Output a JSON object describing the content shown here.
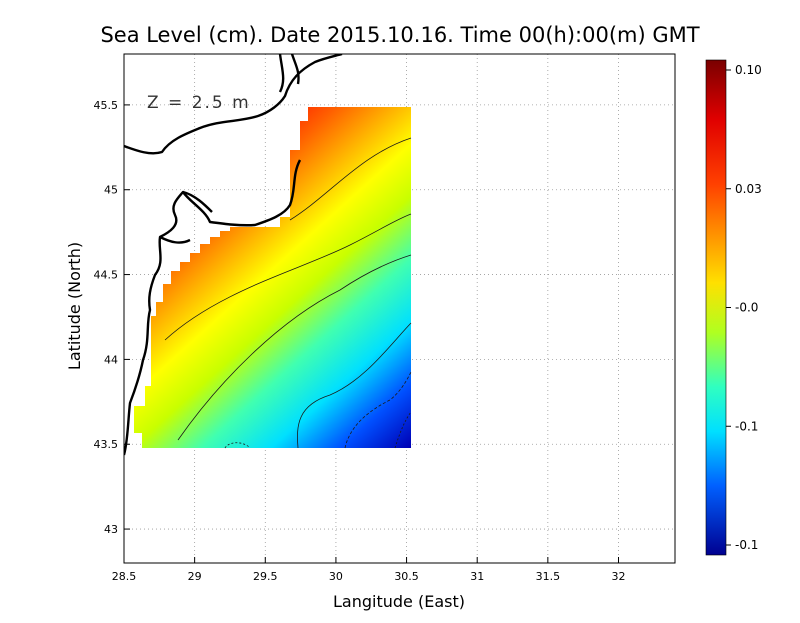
{
  "chart_data": {
    "type": "heatmap",
    "title": "Sea Level (cm). Date 2015.10.16. Time 00(h):00(m) GMT",
    "xlabel": "Langitude (East)",
    "ylabel": "Latitude (North)",
    "annotation": "Z = 2.5 m",
    "xlim": [
      28.5,
      32.4
    ],
    "ylim": [
      42.8,
      45.8
    ],
    "x_ticks": [
      "28.5",
      "29",
      "29.5",
      "30",
      "30.5",
      "31",
      "31.5",
      "32"
    ],
    "y_ticks": [
      "43",
      "43.5",
      "44",
      "44.5",
      "45",
      "45.5"
    ],
    "grid": true,
    "colorbar": {
      "labels": [
        "0.10",
        "0.03",
        "-0.0",
        "-0.1",
        "-0.1"
      ],
      "colors": [
        "#8b0000",
        "#ff0000",
        "#ff8c00",
        "#ffff00",
        "#7fff00",
        "#00ffff",
        "#0080ff",
        "#00008b"
      ]
    },
    "field": {
      "lon_range": [
        28.62,
        30.55
      ],
      "lat_range": [
        43.48,
        45.5
      ],
      "value_range": [
        -0.1,
        0.1
      ],
      "gradient_axis": "southeast to northwest",
      "high_value_region": "northwest near coast",
      "low_value_region": "southeast corner"
    }
  }
}
